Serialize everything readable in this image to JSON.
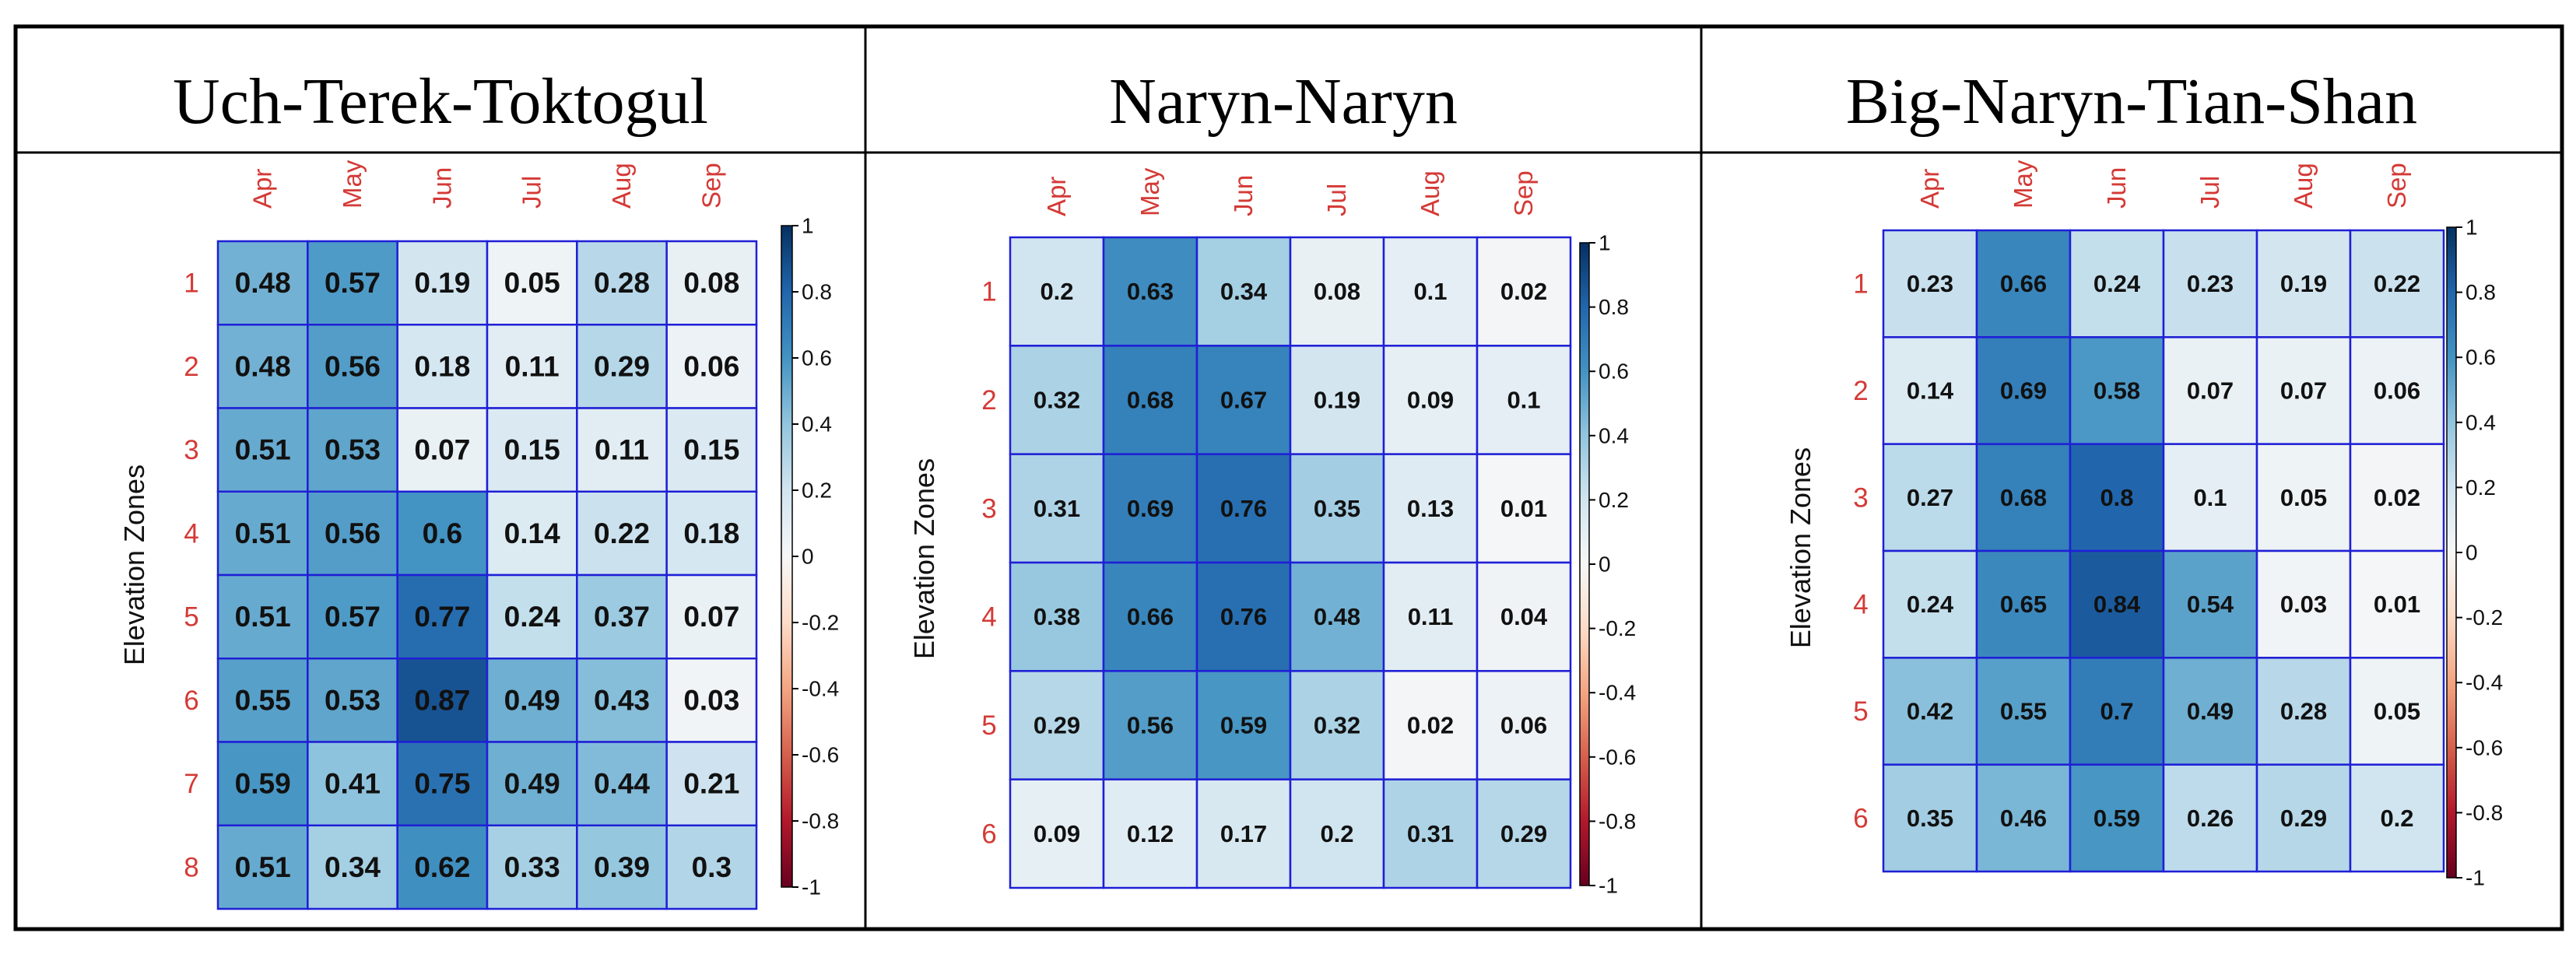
{
  "colors": {
    "scale_low": "#67001f",
    "scale_mid": "#f7f7f7",
    "scale_high": "#053061",
    "label_red": "#d43a36",
    "grid_blue": "#1f1fd6"
  },
  "colorbar_ticks": [
    "1",
    "0.8",
    "0.6",
    "0.4",
    "0.2",
    "0",
    "-0.2",
    "-0.4",
    "-0.6",
    "-0.8",
    "-1"
  ],
  "chart_data": [
    {
      "type": "heatmap",
      "title": "Uch-Terek-Toktogul",
      "ylabel": "Elevation Zones",
      "x": [
        "Apr",
        "May",
        "Jun",
        "Jul",
        "Aug",
        "Sep"
      ],
      "y": [
        "1",
        "2",
        "3",
        "4",
        "5",
        "6",
        "7",
        "8"
      ],
      "values": [
        [
          0.48,
          0.57,
          0.19,
          0.05,
          0.28,
          0.08
        ],
        [
          0.48,
          0.56,
          0.18,
          0.11,
          0.29,
          0.06
        ],
        [
          0.51,
          0.53,
          0.07,
          0.15,
          0.11,
          0.15
        ],
        [
          0.51,
          0.56,
          0.6,
          0.14,
          0.22,
          0.18
        ],
        [
          0.51,
          0.57,
          0.77,
          0.24,
          0.37,
          0.07
        ],
        [
          0.55,
          0.53,
          0.87,
          0.49,
          0.43,
          0.03
        ],
        [
          0.59,
          0.41,
          0.75,
          0.49,
          0.44,
          0.21
        ],
        [
          0.51,
          0.34,
          0.62,
          0.33,
          0.39,
          0.3
        ]
      ],
      "zlim": [
        -1,
        1
      ]
    },
    {
      "type": "heatmap",
      "title": "Naryn-Naryn",
      "ylabel": "Elevation Zones",
      "x": [
        "Apr",
        "May",
        "Jun",
        "Jul",
        "Aug",
        "Sep"
      ],
      "y": [
        "1",
        "2",
        "3",
        "4",
        "5",
        "6"
      ],
      "values": [
        [
          0.2,
          0.63,
          0.34,
          0.08,
          0.1,
          0.02
        ],
        [
          0.32,
          0.68,
          0.67,
          0.19,
          0.09,
          0.1
        ],
        [
          0.31,
          0.69,
          0.76,
          0.35,
          0.13,
          0.01
        ],
        [
          0.38,
          0.66,
          0.76,
          0.48,
          0.11,
          0.04
        ],
        [
          0.29,
          0.56,
          0.59,
          0.32,
          0.02,
          0.06
        ],
        [
          0.09,
          0.12,
          0.17,
          0.2,
          0.31,
          0.29
        ]
      ],
      "zlim": [
        -1,
        1
      ]
    },
    {
      "type": "heatmap",
      "title": "Big-Naryn-Tian-Shan",
      "ylabel": "Elevation Zones",
      "x": [
        "Apr",
        "May",
        "Jun",
        "Jul",
        "Aug",
        "Sep"
      ],
      "y": [
        "1",
        "2",
        "3",
        "4",
        "5",
        "6"
      ],
      "values": [
        [
          0.23,
          0.66,
          0.24,
          0.23,
          0.19,
          0.22
        ],
        [
          0.14,
          0.69,
          0.58,
          0.07,
          0.07,
          0.06
        ],
        [
          0.27,
          0.68,
          0.8,
          0.1,
          0.05,
          0.02
        ],
        [
          0.24,
          0.65,
          0.84,
          0.54,
          0.03,
          0.01
        ],
        [
          0.42,
          0.55,
          0.7,
          0.49,
          0.28,
          0.05
        ],
        [
          0.35,
          0.46,
          0.59,
          0.26,
          0.29,
          0.2
        ]
      ],
      "zlim": [
        -1,
        1
      ]
    }
  ]
}
